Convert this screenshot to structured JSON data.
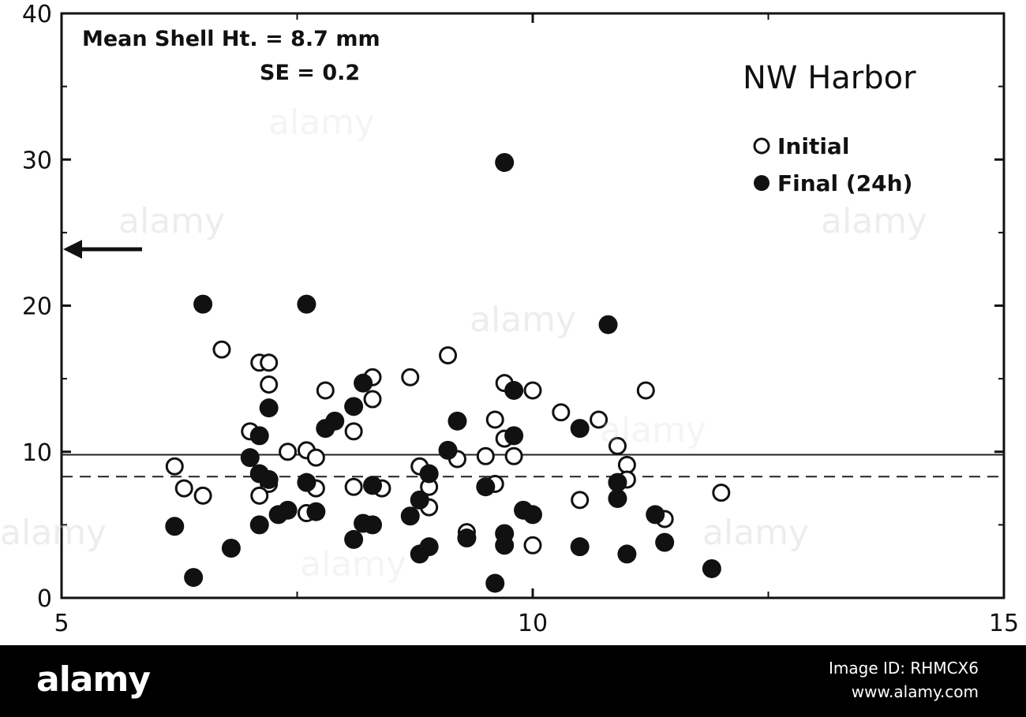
{
  "chart_data": {
    "type": "scatter",
    "title": "",
    "xlabel": "",
    "ylabel": "",
    "xlim": [
      5,
      15
    ],
    "ylim": [
      0,
      40
    ],
    "x_ticks": [
      "5",
      "10",
      "15"
    ],
    "y_ticks": [
      "0",
      "10",
      "20",
      "30",
      "40"
    ],
    "annotations": {
      "mean": "Mean Shell Ht. = 8.7 mm",
      "se": "SE = 0.2",
      "site": "NW Harbor",
      "arrow_y": 24
    },
    "reference_lines": [
      {
        "style": "solid",
        "y": 9.8
      },
      {
        "style": "dashed",
        "y": 8.3
      }
    ],
    "legend_position": "top-right",
    "series": [
      {
        "name": "Initial",
        "marker": "open-circle",
        "points": [
          [
            6.2,
            9.0
          ],
          [
            6.3,
            7.5
          ],
          [
            6.5,
            7.0
          ],
          [
            6.7,
            17.0
          ],
          [
            7.1,
            16.1
          ],
          [
            7.2,
            16.1
          ],
          [
            7.2,
            14.6
          ],
          [
            7.0,
            11.4
          ],
          [
            7.2,
            7.8
          ],
          [
            7.1,
            7.0
          ],
          [
            7.4,
            10.0
          ],
          [
            7.6,
            10.1
          ],
          [
            7.7,
            9.6
          ],
          [
            7.6,
            5.8
          ],
          [
            7.7,
            7.5
          ],
          [
            7.8,
            14.2
          ],
          [
            8.1,
            11.4
          ],
          [
            8.1,
            7.6
          ],
          [
            8.3,
            15.1
          ],
          [
            8.3,
            13.6
          ],
          [
            8.4,
            7.5
          ],
          [
            8.7,
            15.1
          ],
          [
            8.8,
            9.0
          ],
          [
            8.9,
            7.6
          ],
          [
            8.9,
            6.2
          ],
          [
            9.1,
            16.6
          ],
          [
            9.2,
            9.5
          ],
          [
            9.3,
            4.5
          ],
          [
            9.5,
            9.7
          ],
          [
            9.6,
            12.2
          ],
          [
            9.7,
            14.7
          ],
          [
            9.7,
            10.9
          ],
          [
            9.6,
            7.8
          ],
          [
            9.8,
            9.7
          ],
          [
            10.0,
            3.6
          ],
          [
            10.3,
            12.7
          ],
          [
            10.0,
            14.2
          ],
          [
            10.5,
            6.7
          ],
          [
            10.7,
            12.2
          ],
          [
            10.9,
            10.4
          ],
          [
            11.0,
            9.1
          ],
          [
            11.0,
            8.1
          ],
          [
            11.2,
            14.2
          ],
          [
            11.4,
            5.4
          ],
          [
            12.0,
            7.2
          ]
        ]
      },
      {
        "name": "Final (24h)",
        "marker": "filled-circle",
        "points": [
          [
            6.2,
            4.9
          ],
          [
            6.4,
            1.4
          ],
          [
            6.5,
            20.1
          ],
          [
            6.8,
            3.4
          ],
          [
            7.0,
            9.6
          ],
          [
            7.1,
            8.5
          ],
          [
            7.1,
            11.1
          ],
          [
            7.2,
            8.1
          ],
          [
            7.2,
            13.0
          ],
          [
            7.1,
            5.0
          ],
          [
            7.3,
            5.7
          ],
          [
            7.4,
            6.0
          ],
          [
            7.6,
            20.1
          ],
          [
            7.6,
            7.9
          ],
          [
            7.7,
            5.9
          ],
          [
            7.8,
            11.6
          ],
          [
            7.9,
            12.1
          ],
          [
            8.1,
            13.1
          ],
          [
            8.2,
            14.7
          ],
          [
            8.1,
            4.0
          ],
          [
            8.2,
            5.1
          ],
          [
            8.3,
            5.0
          ],
          [
            8.3,
            7.7
          ],
          [
            8.7,
            5.6
          ],
          [
            8.8,
            6.7
          ],
          [
            8.8,
            3.0
          ],
          [
            8.9,
            3.5
          ],
          [
            8.9,
            8.5
          ],
          [
            9.1,
            10.1
          ],
          [
            9.2,
            12.1
          ],
          [
            9.3,
            4.1
          ],
          [
            9.5,
            7.6
          ],
          [
            9.6,
            1.0
          ],
          [
            9.7,
            4.4
          ],
          [
            9.7,
            3.6
          ],
          [
            9.8,
            11.1
          ],
          [
            9.9,
            6.0
          ],
          [
            9.7,
            29.8
          ],
          [
            9.8,
            14.2
          ],
          [
            10.0,
            5.7
          ],
          [
            10.5,
            11.6
          ],
          [
            10.5,
            3.5
          ],
          [
            10.9,
            6.8
          ],
          [
            10.9,
            7.9
          ],
          [
            10.8,
            18.7
          ],
          [
            11.0,
            3.0
          ],
          [
            11.3,
            5.7
          ],
          [
            11.4,
            3.8
          ],
          [
            11.9,
            2.0
          ]
        ]
      }
    ]
  },
  "watermarks": [
    "alamy",
    "alamy",
    "alamy",
    "alamy",
    "alamy",
    "alamy",
    "alamy",
    "alamy"
  ],
  "banner": {
    "logo": "alamy",
    "image_id": "Image ID: RHMCX6",
    "site": "www.alamy.com"
  }
}
